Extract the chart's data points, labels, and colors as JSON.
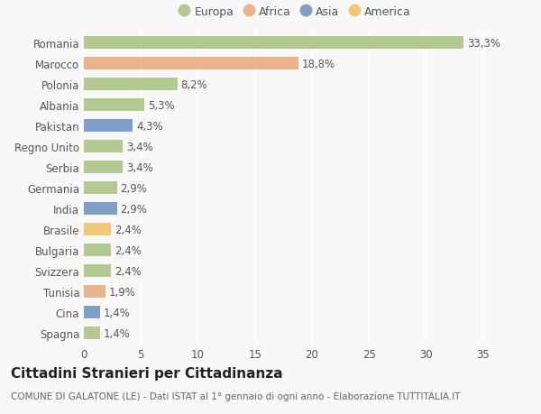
{
  "countries": [
    "Romania",
    "Marocco",
    "Polonia",
    "Albania",
    "Pakistan",
    "Regno Unito",
    "Serbia",
    "Germania",
    "India",
    "Brasile",
    "Bulgaria",
    "Svizzera",
    "Tunisia",
    "Cina",
    "Spagna"
  ],
  "values": [
    33.3,
    18.8,
    8.2,
    5.3,
    4.3,
    3.4,
    3.4,
    2.9,
    2.9,
    2.4,
    2.4,
    2.4,
    1.9,
    1.4,
    1.4
  ],
  "labels": [
    "33,3%",
    "18,8%",
    "8,2%",
    "5,3%",
    "4,3%",
    "3,4%",
    "3,4%",
    "2,9%",
    "2,9%",
    "2,4%",
    "2,4%",
    "2,4%",
    "1,9%",
    "1,4%",
    "1,4%"
  ],
  "colors": [
    "#a8c080",
    "#e8a878",
    "#a8c080",
    "#a8c080",
    "#6890c0",
    "#a8c080",
    "#a8c080",
    "#a8c080",
    "#6890c0",
    "#f0c060",
    "#a8c080",
    "#a8c080",
    "#e8a878",
    "#6890c0",
    "#a8c080"
  ],
  "legend_labels": [
    "Europa",
    "Africa",
    "Asia",
    "America"
  ],
  "legend_colors": [
    "#a8c080",
    "#e8a878",
    "#6890c0",
    "#f0c060"
  ],
  "title": "Cittadini Stranieri per Cittadinanza",
  "subtitle": "COMUNE DI GALATONE (LE) - Dati ISTAT al 1° gennaio di ogni anno - Elaborazione TUTTITALIA.IT",
  "xlim": [
    0,
    37
  ],
  "xticks": [
    0,
    5,
    10,
    15,
    20,
    25,
    30,
    35
  ],
  "background_color": "#f8f8f8",
  "grid_color": "#ffffff",
  "bar_height": 0.62,
  "label_fontsize": 8.5,
  "tick_fontsize": 8.5,
  "title_fontsize": 11,
  "subtitle_fontsize": 7.5
}
